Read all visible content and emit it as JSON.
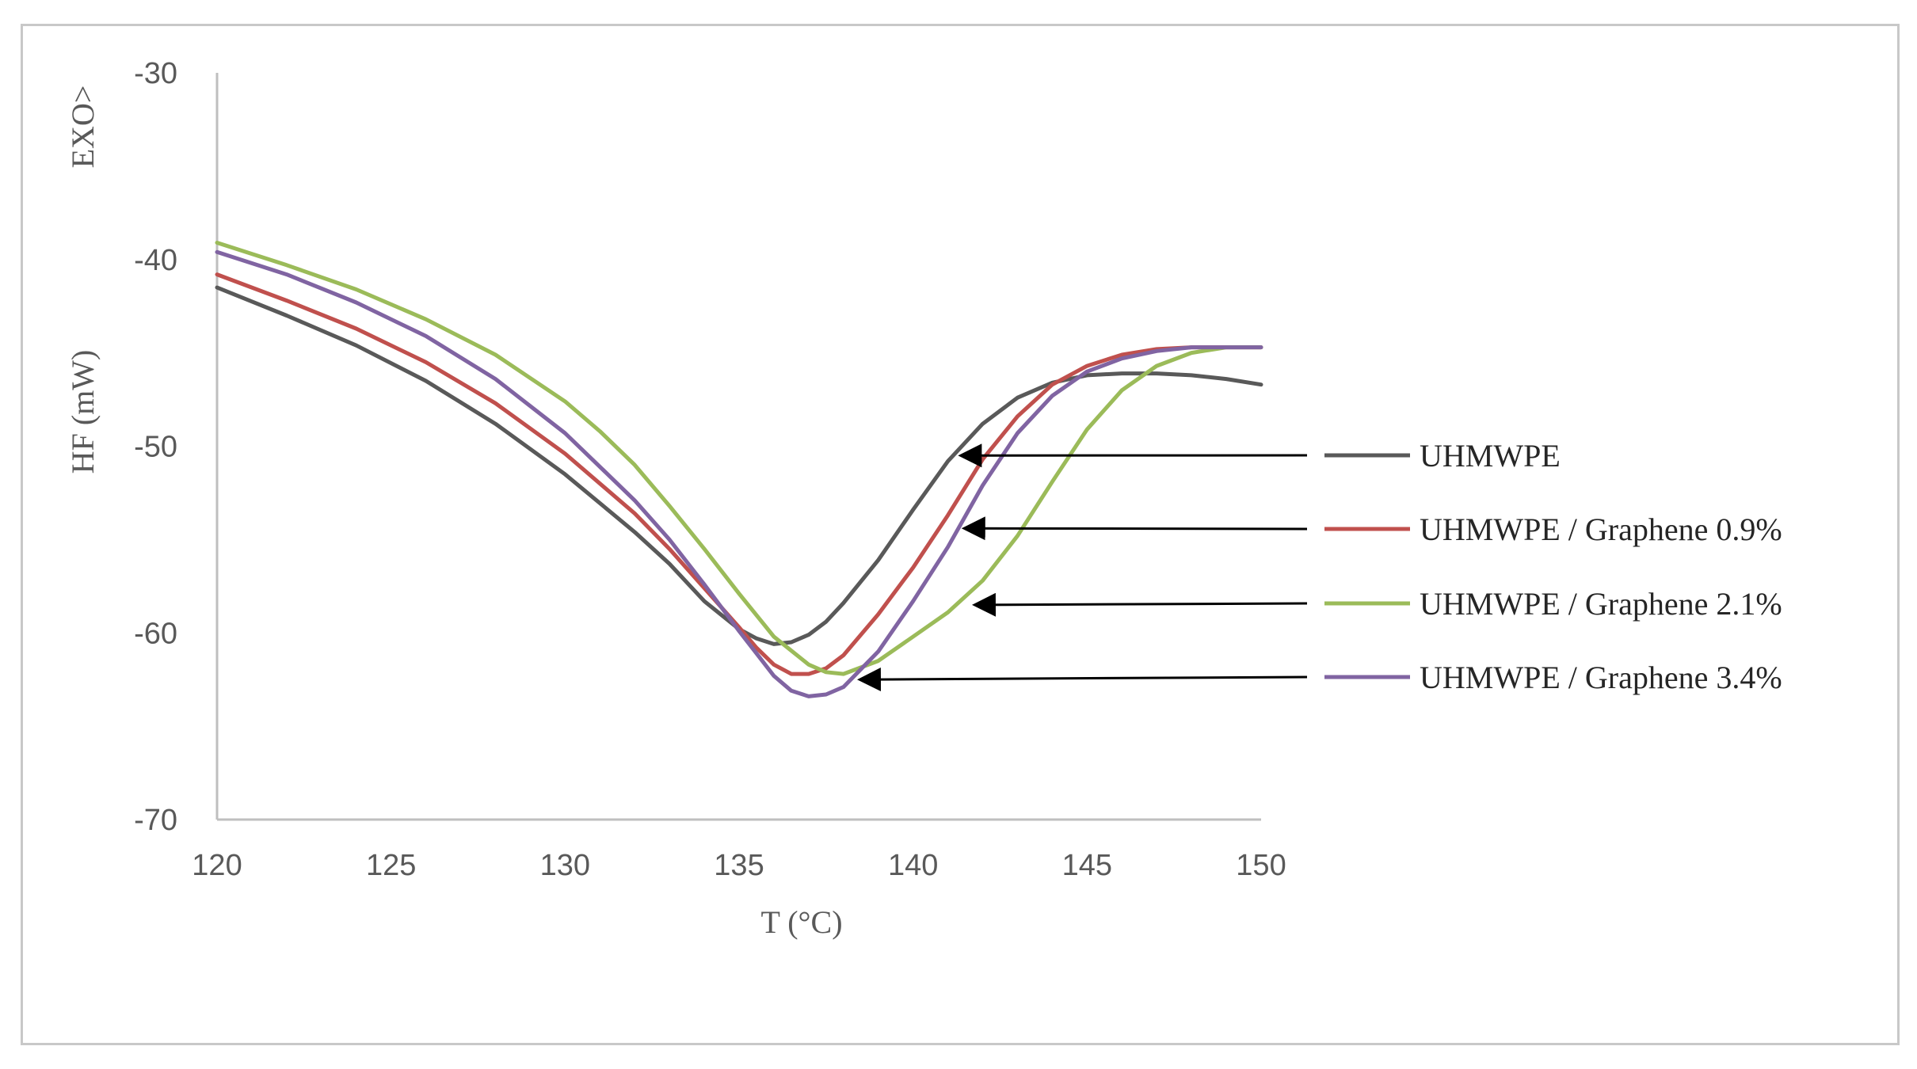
{
  "chart_data": {
    "type": "line",
    "title": "",
    "xlabel": "T (°C)",
    "ylabel": "HF (mW)",
    "exo_label": "EXO>",
    "xlim": [
      120,
      150
    ],
    "ylim": [
      -70,
      -30
    ],
    "x_ticks": [
      "120",
      "125",
      "130",
      "135",
      "140",
      "145",
      "150"
    ],
    "y_ticks": [
      "-30",
      "-40",
      "-50",
      "-60",
      "-70"
    ],
    "grid": false,
    "legend_position": "right",
    "series": [
      {
        "name": "UHMWPE",
        "color": "#595959",
        "arrow_to": [
          141.2,
          -50.5
        ],
        "points": [
          [
            120,
            -41.5
          ],
          [
            122,
            -43
          ],
          [
            124,
            -44.6
          ],
          [
            126,
            -46.5
          ],
          [
            128,
            -48.8
          ],
          [
            130,
            -51.5
          ],
          [
            132,
            -54.6
          ],
          [
            133,
            -56.3
          ],
          [
            134,
            -58.3
          ],
          [
            135,
            -59.8
          ],
          [
            135.5,
            -60.3
          ],
          [
            136,
            -60.6
          ],
          [
            136.5,
            -60.5
          ],
          [
            137,
            -60.1
          ],
          [
            137.5,
            -59.4
          ],
          [
            138,
            -58.4
          ],
          [
            139,
            -56.1
          ],
          [
            140,
            -53.4
          ],
          [
            141,
            -50.8
          ],
          [
            142,
            -48.8
          ],
          [
            143,
            -47.4
          ],
          [
            144,
            -46.6
          ],
          [
            145,
            -46.2
          ],
          [
            146,
            -46.1
          ],
          [
            147,
            -46.1
          ],
          [
            148,
            -46.2
          ],
          [
            149,
            -46.4
          ],
          [
            150,
            -46.7
          ]
        ]
      },
      {
        "name": "UHMWPE / Graphene 0.9%",
        "color": "#c0504d",
        "arrow_to": [
          141.3,
          -54.4
        ],
        "points": [
          [
            120,
            -40.8
          ],
          [
            122,
            -42.2
          ],
          [
            124,
            -43.7
          ],
          [
            126,
            -45.5
          ],
          [
            128,
            -47.7
          ],
          [
            130,
            -50.4
          ],
          [
            132,
            -53.6
          ],
          [
            133,
            -55.5
          ],
          [
            134,
            -57.6
          ],
          [
            135,
            -59.7
          ],
          [
            135.5,
            -60.8
          ],
          [
            136,
            -61.7
          ],
          [
            136.5,
            -62.2
          ],
          [
            137,
            -62.2
          ],
          [
            137.5,
            -61.9
          ],
          [
            138,
            -61.2
          ],
          [
            139,
            -59
          ],
          [
            140,
            -56.5
          ],
          [
            141,
            -53.7
          ],
          [
            142,
            -50.7
          ],
          [
            143,
            -48.4
          ],
          [
            144,
            -46.7
          ],
          [
            145,
            -45.7
          ],
          [
            146,
            -45.1
          ],
          [
            147,
            -44.8
          ],
          [
            148,
            -44.7
          ],
          [
            149,
            -44.7
          ],
          [
            150,
            -44.7
          ]
        ]
      },
      {
        "name": "UHMWPE / Graphene 2.1%",
        "color": "#9bbb59",
        "arrow_to": [
          141.6,
          -58.5
        ],
        "points": [
          [
            120,
            -39.1
          ],
          [
            122,
            -40.3
          ],
          [
            124,
            -41.6
          ],
          [
            126,
            -43.2
          ],
          [
            128,
            -45.1
          ],
          [
            130,
            -47.6
          ],
          [
            131,
            -49.2
          ],
          [
            132,
            -51
          ],
          [
            133,
            -53.2
          ],
          [
            134,
            -55.5
          ],
          [
            135,
            -57.9
          ],
          [
            136,
            -60.2
          ],
          [
            137,
            -61.7
          ],
          [
            137.5,
            -62.1
          ],
          [
            138,
            -62.2
          ],
          [
            139,
            -61.5
          ],
          [
            140,
            -60.2
          ],
          [
            141,
            -58.9
          ],
          [
            142,
            -57.2
          ],
          [
            143,
            -54.8
          ],
          [
            144,
            -51.9
          ],
          [
            145,
            -49.1
          ],
          [
            146,
            -47
          ],
          [
            147,
            -45.7
          ],
          [
            148,
            -45
          ],
          [
            149,
            -44.7
          ],
          [
            150,
            -44.7
          ]
        ]
      },
      {
        "name": "UHMWPE / Graphene 3.4%",
        "color": "#8064a2",
        "arrow_to": [
          138.3,
          -62.5
        ],
        "points": [
          [
            120,
            -39.6
          ],
          [
            122,
            -40.8
          ],
          [
            124,
            -42.3
          ],
          [
            126,
            -44.1
          ],
          [
            128,
            -46.4
          ],
          [
            130,
            -49.3
          ],
          [
            132,
            -52.9
          ],
          [
            133,
            -55
          ],
          [
            134,
            -57.4
          ],
          [
            135,
            -59.9
          ],
          [
            135.5,
            -61.1
          ],
          [
            136,
            -62.3
          ],
          [
            136.5,
            -63.1
          ],
          [
            137,
            -63.4
          ],
          [
            137.5,
            -63.3
          ],
          [
            138,
            -62.9
          ],
          [
            139,
            -61
          ],
          [
            140,
            -58.3
          ],
          [
            141,
            -55.4
          ],
          [
            142,
            -52.1
          ],
          [
            143,
            -49.3
          ],
          [
            144,
            -47.3
          ],
          [
            145,
            -46
          ],
          [
            146,
            -45.3
          ],
          [
            147,
            -44.9
          ],
          [
            148,
            -44.7
          ],
          [
            149,
            -44.7
          ],
          [
            150,
            -44.7
          ]
        ]
      }
    ]
  }
}
